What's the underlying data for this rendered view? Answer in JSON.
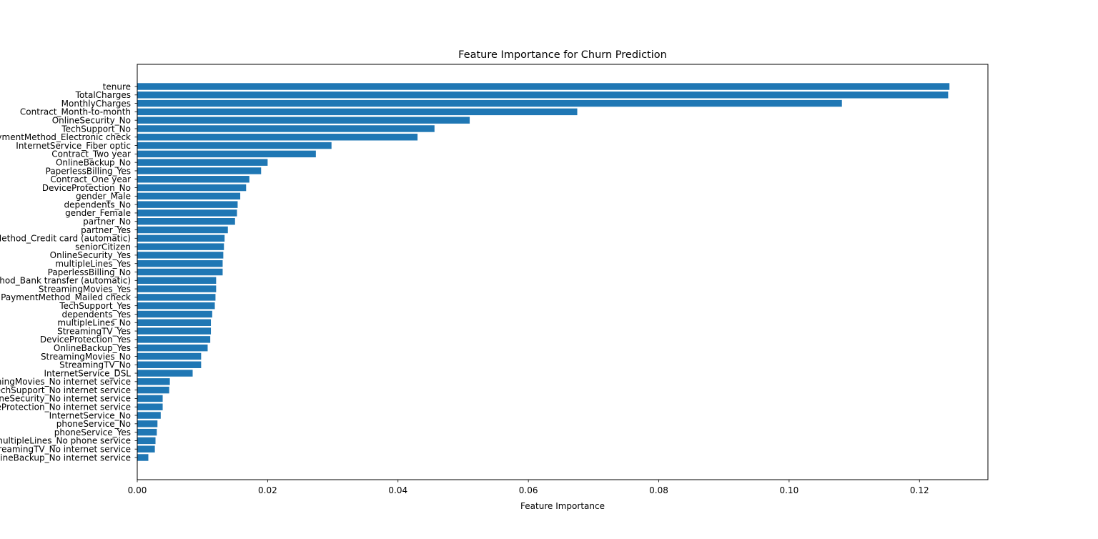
{
  "chart_data": {
    "type": "bar",
    "orientation": "horizontal",
    "title": "Feature Importance for Churn Prediction",
    "xlabel": "Feature Importance",
    "ylabel": "",
    "xlim": [
      0,
      0.1305
    ],
    "xticks": [
      0.0,
      0.02,
      0.04,
      0.06,
      0.08,
      0.1,
      0.12
    ],
    "xtick_labels": [
      "0.00",
      "0.02",
      "0.04",
      "0.06",
      "0.08",
      "0.10",
      "0.12"
    ],
    "grid": false,
    "bar_color": "#1f77b4",
    "categories": [
      "tenure",
      "TotalCharges",
      "MonthlyCharges",
      "Contract_Month-to-month",
      "OnlineSecurity_No",
      "TechSupport_No",
      "PaymentMethod_Electronic check",
      "InternetService_Fiber optic",
      "Contract_Two year",
      "OnlineBackup_No",
      "PaperlessBilling_Yes",
      "Contract_One year",
      "DeviceProtection_No",
      "gender_Male",
      "dependents_No",
      "gender_Female",
      "partner_No",
      "partner_Yes",
      "PaymentMethod_Credit card (automatic)",
      "seniorCitizen",
      "OnlineSecurity_Yes",
      "multipleLines_Yes",
      "PaperlessBilling_No",
      "PaymentMethod_Bank transfer (automatic)",
      "StreamingMovies_Yes",
      "PaymentMethod_Mailed check",
      "TechSupport_Yes",
      "dependents_Yes",
      "multipleLines_No",
      "StreamingTV_Yes",
      "DeviceProtection_Yes",
      "OnlineBackup_Yes",
      "StreamingMovies_No",
      "StreamingTV_No",
      "InternetService_DSL",
      "StreamingMovies_No internet service",
      "TechSupport_No internet service",
      "OnlineSecurity_No internet service",
      "DeviceProtection_No internet service",
      "InternetService_No",
      "phoneService_No",
      "phoneService_Yes",
      "multipleLines_No phone service",
      "StreamingTV_No internet service",
      "OnlineBackup_No internet service"
    ],
    "values": [
      0.1246,
      0.1244,
      0.1081,
      0.0675,
      0.051,
      0.0456,
      0.043,
      0.0298,
      0.0274,
      0.02,
      0.019,
      0.0172,
      0.0167,
      0.0158,
      0.0154,
      0.0153,
      0.015,
      0.0139,
      0.0134,
      0.0133,
      0.0132,
      0.0131,
      0.0131,
      0.0121,
      0.0121,
      0.012,
      0.0119,
      0.0115,
      0.0113,
      0.0113,
      0.0112,
      0.0108,
      0.0098,
      0.0098,
      0.0085,
      0.005,
      0.0049,
      0.0039,
      0.0039,
      0.0036,
      0.0031,
      0.003,
      0.0028,
      0.0027,
      0.0017
    ]
  }
}
